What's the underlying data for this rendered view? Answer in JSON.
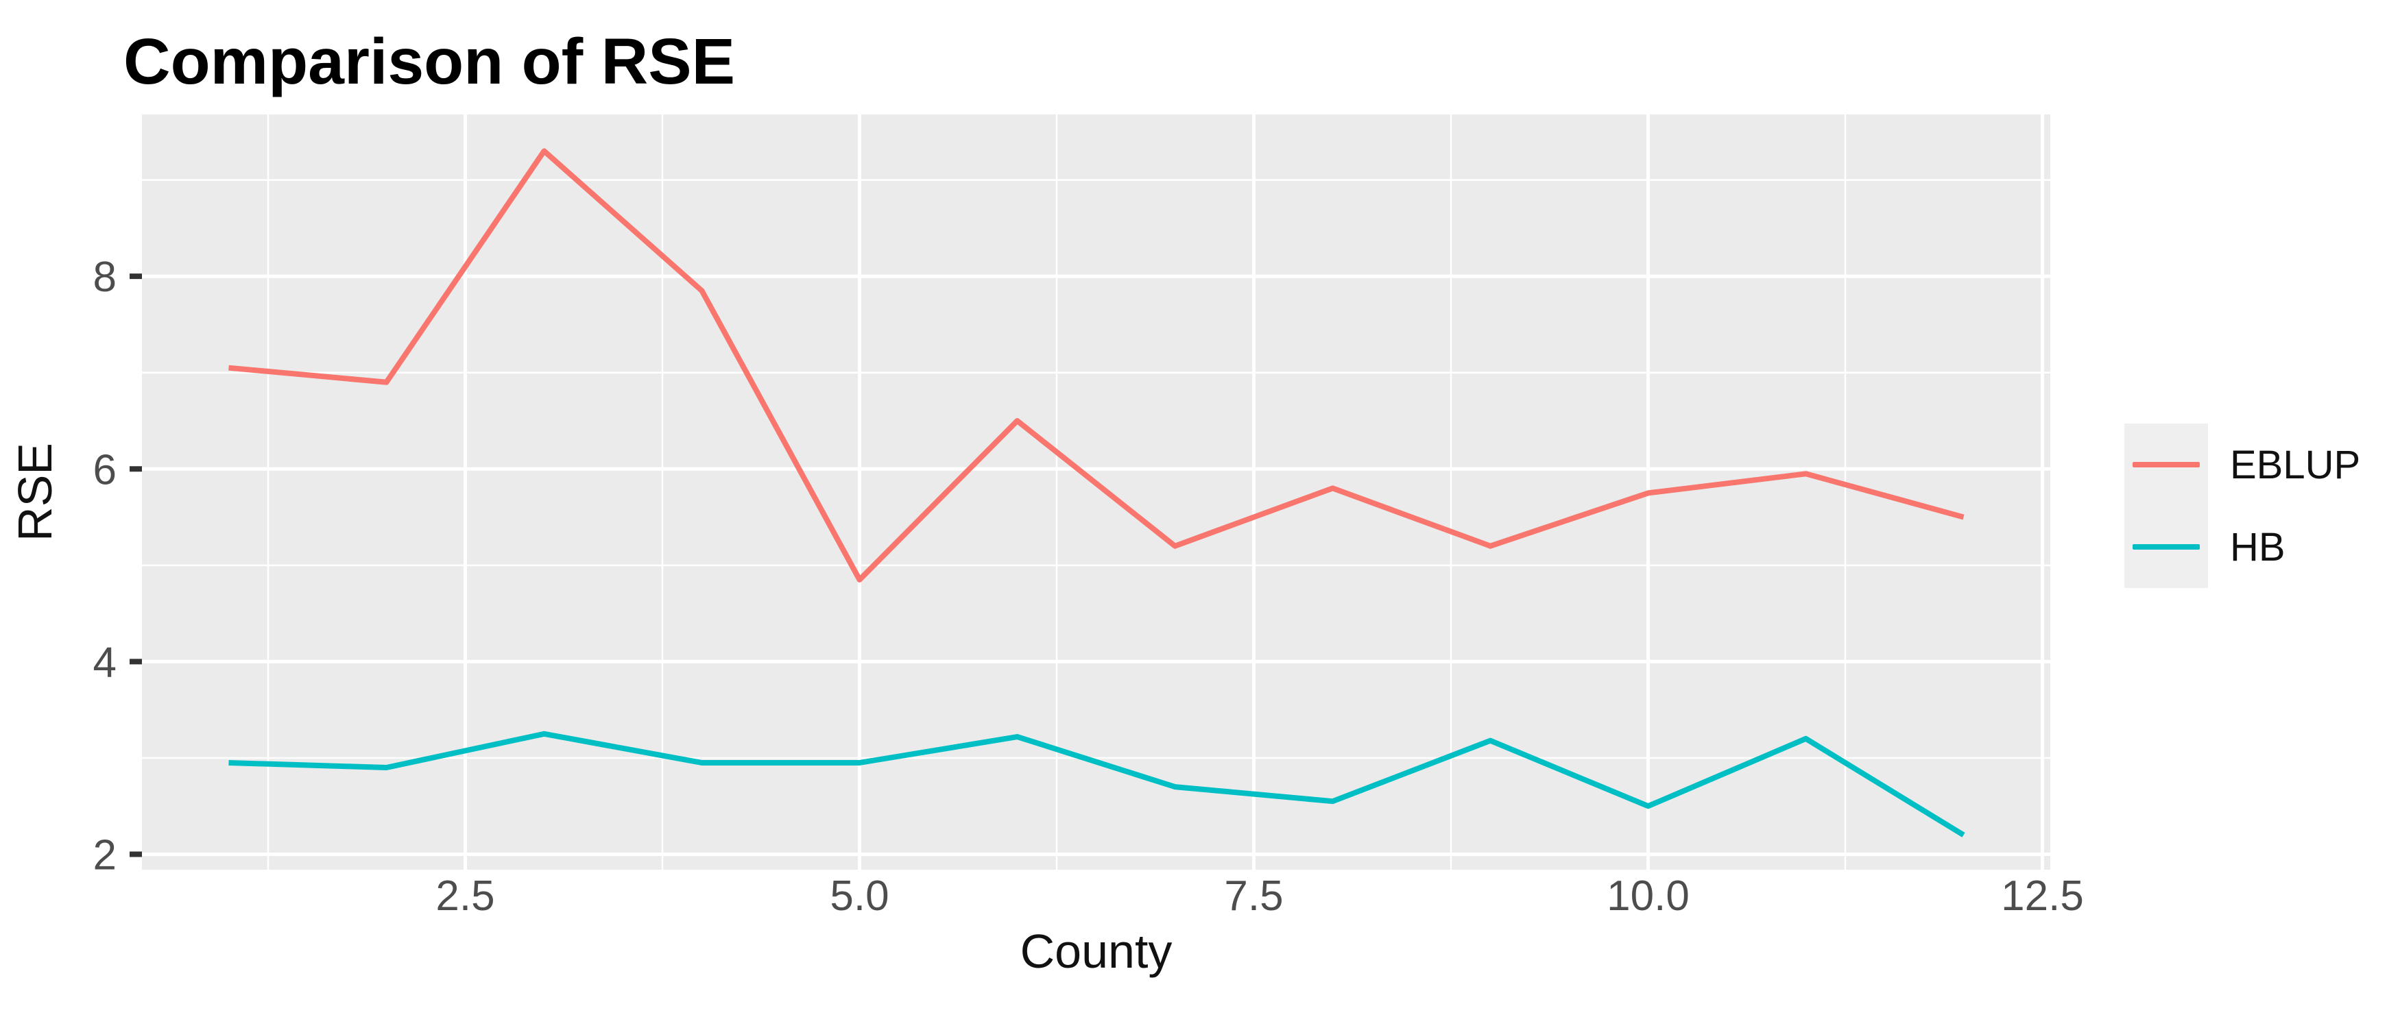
{
  "chart_data": {
    "type": "line",
    "title": "Comparison of RSE",
    "xlabel": "County",
    "ylabel": "RSE",
    "x": [
      1,
      2,
      3,
      4,
      5,
      6,
      7,
      8,
      9,
      10,
      11,
      12
    ],
    "series": [
      {
        "name": "EBLUP",
        "color": "#F8766D",
        "values": [
          7.05,
          6.9,
          9.3,
          7.85,
          4.85,
          6.5,
          5.2,
          5.8,
          5.2,
          5.75,
          5.95,
          5.5
        ]
      },
      {
        "name": "HB",
        "color": "#00BFC4",
        "values": [
          2.95,
          2.9,
          3.25,
          2.95,
          2.95,
          3.22,
          2.7,
          2.55,
          3.18,
          2.5,
          3.2,
          2.2
        ]
      }
    ],
    "x_ticks": {
      "values": [
        2.5,
        5,
        7.5,
        10,
        12.5
      ],
      "labels": [
        "2.5",
        "5.0",
        "7.5",
        "10.0",
        "12.5"
      ]
    },
    "x_minor": [
      1.25,
      3.75,
      6.25,
      8.75,
      11.25
    ],
    "y_ticks": {
      "values": [
        2,
        4,
        6,
        8
      ],
      "labels": [
        "2",
        "4",
        "6",
        "8"
      ]
    },
    "y_minor": [
      3,
      5,
      7,
      9
    ],
    "xlim": [
      0.45,
      12.55
    ],
    "ylim": [
      1.84,
      9.68
    ],
    "grid": true,
    "legend_position": "right",
    "colors": {
      "panel_bg": "#EBEBEB",
      "grid": "#FFFFFF",
      "tick": "#333333",
      "tick_label": "#4D4D4D",
      "axis_title": "#111111",
      "title": "#000000",
      "legend_key_bg": "#EFEFEF",
      "background": "#FFFFFF"
    }
  }
}
